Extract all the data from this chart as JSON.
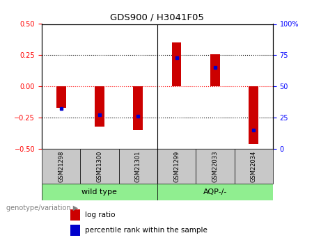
{
  "title": "GDS900 / H3041F05",
  "samples": [
    "GSM21298",
    "GSM21300",
    "GSM21301",
    "GSM21299",
    "GSM22033",
    "GSM22034"
  ],
  "log_ratios": [
    -0.17,
    -0.32,
    -0.35,
    0.35,
    0.26,
    -0.46
  ],
  "percentile_ranks": [
    32,
    27,
    26,
    73,
    65,
    15
  ],
  "bar_color": "#CC0000",
  "blue_color": "#0000CC",
  "ylim_left": [
    -0.5,
    0.5
  ],
  "ylim_right": [
    0,
    100
  ],
  "yticks_left": [
    -0.5,
    -0.25,
    0,
    0.25,
    0.5
  ],
  "yticks_right": [
    0,
    25,
    50,
    75,
    100
  ],
  "grid_values": [
    -0.25,
    0,
    0.25
  ],
  "bar_width": 0.25,
  "background_color": "#ffffff",
  "group_bg_color": "#c8c8c8",
  "green_color": "#90EE90",
  "legend_red_label": "log ratio",
  "legend_blue_label": "percentile rank within the sample",
  "genotype_label": "genotype/variation",
  "group_labels": [
    "wild type",
    "AQP-/-"
  ],
  "sep_index": 2.5
}
